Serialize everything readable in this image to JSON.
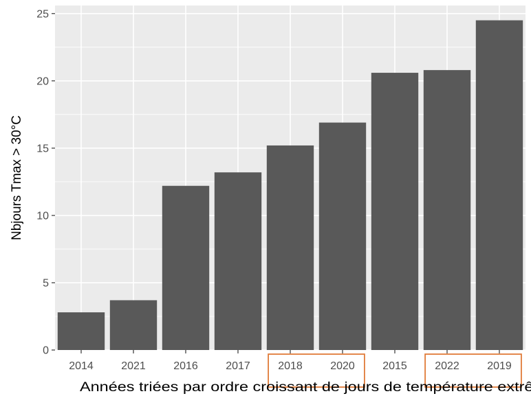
{
  "chart_data": {
    "type": "bar",
    "xlabel": "Années triées par ordre croissant de jours de température extrême",
    "ylabel": "Nbjours Tmax > 30°C",
    "categories": [
      "2014",
      "2021",
      "2016",
      "2017",
      "2018",
      "2020",
      "2015",
      "2022",
      "2019"
    ],
    "values": [
      2.8,
      3.7,
      12.2,
      13.2,
      15.2,
      16.9,
      20.6,
      20.8,
      24.5
    ],
    "ylim": [
      0,
      25.6
    ],
    "yticks": [
      0,
      5,
      10,
      15,
      20,
      25
    ],
    "grid": true,
    "legend": "none",
    "highlighted_groups": [
      [
        "2018",
        "2020"
      ],
      [
        "2022",
        "2019"
      ]
    ],
    "colors": {
      "bar": "#595959",
      "panel_background": "#ebebeb",
      "gridline": "#ffffff",
      "highlight_box": "#e07b39"
    }
  }
}
